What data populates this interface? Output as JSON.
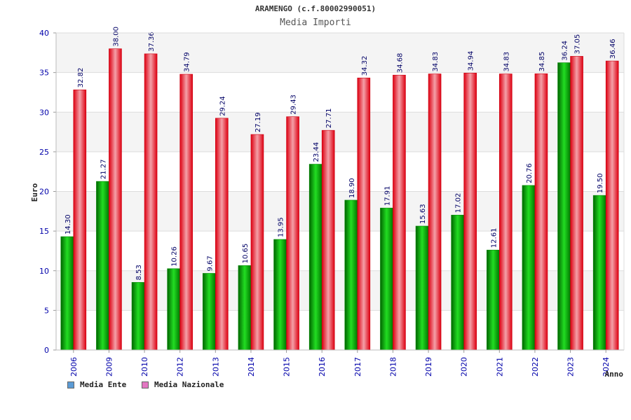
{
  "chart_data": {
    "type": "bar",
    "title": "ARAMENGO (c.f.80002990051)",
    "subtitle": "Media Importi",
    "xlabel": "Anno",
    "ylabel": "Euro",
    "ylim": [
      0,
      40
    ],
    "yticks": [
      0,
      5,
      10,
      15,
      20,
      25,
      30,
      35,
      40
    ],
    "ytick_labels": [
      "0",
      "5",
      "10",
      "15",
      "20",
      "25",
      "30",
      "35",
      "40"
    ],
    "categories": [
      "2006",
      "2009",
      "2010",
      "2012",
      "2013",
      "2014",
      "2015",
      "2016",
      "2017",
      "2018",
      "2019",
      "2020",
      "2021",
      "2022",
      "2023",
      "2024"
    ],
    "series": [
      {
        "name": "Media Ente",
        "color": "#00aa00",
        "values": [
          14.3,
          21.27,
          8.53,
          10.26,
          9.67,
          10.65,
          13.95,
          23.44,
          18.9,
          17.91,
          15.63,
          17.02,
          12.61,
          20.76,
          36.24,
          19.5
        ],
        "labels": [
          "14.30",
          "21.27",
          "8.53",
          "10.26",
          "9.67",
          "10.65",
          "13.95",
          "23.44",
          "18.90",
          "17.91",
          "15.63",
          "17.02",
          "12.61",
          "20.76",
          "36.24",
          "19.50"
        ]
      },
      {
        "name": "Media Nazionale",
        "color": "#ee1122",
        "values": [
          32.82,
          38.0,
          37.36,
          34.79,
          29.24,
          27.19,
          29.43,
          27.71,
          34.32,
          34.68,
          34.83,
          34.94,
          34.83,
          34.85,
          37.05,
          36.46
        ],
        "labels": [
          "32.82",
          "38.00",
          "37.36",
          "34.79",
          "29.24",
          "27.19",
          "29.43",
          "27.71",
          "34.32",
          "34.68",
          "34.83",
          "34.94",
          "34.83",
          "34.85",
          "37.05",
          "36.46"
        ]
      }
    ],
    "legend": [
      {
        "label": "Media Ente",
        "color": "#5b9bd5"
      },
      {
        "label": "Media Nazionale",
        "color": "#e377c2"
      }
    ],
    "legend_position": "bottom-left",
    "grid": true
  }
}
